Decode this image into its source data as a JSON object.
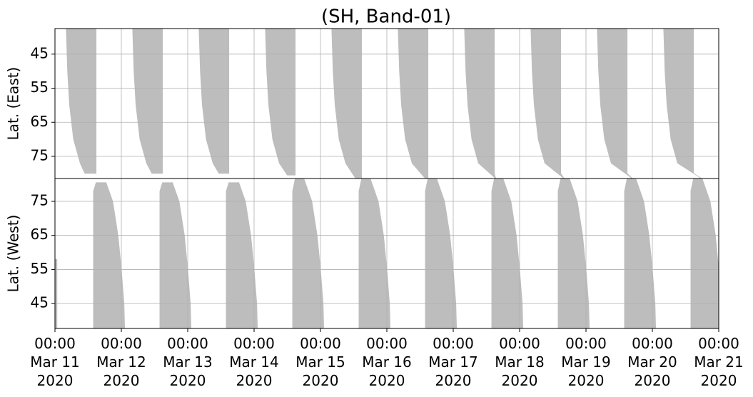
{
  "chart_data": {
    "type": "band",
    "title": "(SH, Band-01)",
    "color": "#bdbdbd",
    "grid": true,
    "xlim": [
      0,
      10
    ],
    "xticks": [
      {
        "value": 0,
        "label": "00:00\nMar 11\n2020"
      },
      {
        "value": 1,
        "label": "00:00\nMar 12\n2020"
      },
      {
        "value": 2,
        "label": "00:00\nMar 13\n2020"
      },
      {
        "value": 3,
        "label": "00:00\nMar 14\n2020"
      },
      {
        "value": 4,
        "label": "00:00\nMar 15\n2020"
      },
      {
        "value": 5,
        "label": "00:00\nMar 16\n2020"
      },
      {
        "value": 6,
        "label": "00:00\nMar 17\n2020"
      },
      {
        "value": 7,
        "label": "00:00\nMar 18\n2020"
      },
      {
        "value": 8,
        "label": "00:00\nMar 19\n2020"
      },
      {
        "value": 9,
        "label": "00:00\nMar 20\n2020"
      },
      {
        "value": 10,
        "label": "00:00\nMar 21\n2020"
      }
    ],
    "panels": [
      {
        "ylabel": "Lat. (East)",
        "ylim": [
          81.5,
          37.5
        ],
        "yticks": [
          45,
          55,
          65,
          75
        ],
        "bands": [
          {
            "x": [
              0.17,
              0.19,
              0.22,
              0.28,
              0.38,
              0.45,
              0.62,
              0.62
            ],
            "y": [
              37.5,
              50,
              60,
              70,
              77,
              80,
              80,
              37.5
            ]
          },
          {
            "x": [
              1.17,
              1.19,
              1.22,
              1.28,
              1.38,
              1.46,
              1.62,
              1.62
            ],
            "y": [
              37.5,
              50,
              60,
              70,
              77,
              80,
              80,
              37.5
            ]
          },
          {
            "x": [
              2.17,
              2.19,
              2.22,
              2.28,
              2.38,
              2.47,
              2.62,
              2.62
            ],
            "y": [
              37.5,
              50,
              60,
              70,
              77,
              80,
              80,
              37.5
            ]
          },
          {
            "x": [
              3.17,
              3.19,
              3.22,
              3.28,
              3.38,
              3.5,
              3.62,
              3.62
            ],
            "y": [
              37.5,
              50,
              60,
              70,
              77,
              80.5,
              80.5,
              37.5
            ]
          },
          {
            "x": [
              4.17,
              4.19,
              4.22,
              4.28,
              4.38,
              4.53,
              4.62,
              4.62
            ],
            "y": [
              37.5,
              50,
              60,
              70,
              77,
              81.5,
              81.5,
              37.5
            ]
          },
          {
            "x": [
              5.17,
              5.19,
              5.22,
              5.28,
              5.38,
              5.58,
              5.62,
              5.62
            ],
            "y": [
              37.5,
              50,
              60,
              70,
              77,
              81.5,
              81.5,
              37.5
            ]
          },
          {
            "x": [
              6.17,
              6.19,
              6.22,
              6.28,
              6.38,
              6.64,
              6.62,
              6.62
            ],
            "y": [
              37.5,
              50,
              60,
              70,
              77,
              81.5,
              80,
              37.5
            ]
          },
          {
            "x": [
              7.17,
              7.19,
              7.22,
              7.28,
              7.38,
              7.67,
              7.62,
              7.62
            ],
            "y": [
              37.5,
              50,
              60,
              70,
              77,
              81.5,
              80,
              37.5
            ]
          },
          {
            "x": [
              8.17,
              8.19,
              8.22,
              8.28,
              8.38,
              8.7,
              8.62,
              8.62
            ],
            "y": [
              37.5,
              50,
              60,
              70,
              77,
              81.5,
              80,
              37.5
            ]
          },
          {
            "x": [
              9.17,
              9.19,
              9.22,
              9.28,
              9.38,
              9.74,
              9.62,
              9.62
            ],
            "y": [
              37.5,
              50,
              60,
              70,
              77,
              81.5,
              80,
              37.5
            ]
          }
        ]
      },
      {
        "ylabel": "Lat. (West)",
        "ylim": [
          37.7,
          81.7
        ],
        "yticks": [
          75,
          65,
          55,
          45
        ],
        "bands": [
          {
            "x": [
              0,
              0,
              0.03,
              0.03
            ],
            "y": [
              37.7,
              58,
              58,
              37.7
            ]
          },
          {
            "x": [
              0.58,
              0.58,
              0.62,
              0.77,
              0.87,
              0.95,
              1.0,
              1.04,
              1.05
            ],
            "y": [
              37.7,
              78,
              80.5,
              80.5,
              75,
              65,
              55,
              45,
              37.7
            ]
          },
          {
            "x": [
              1.58,
              1.58,
              1.62,
              1.77,
              1.87,
              1.95,
              2.0,
              2.04,
              2.05
            ],
            "y": [
              37.7,
              78,
              80.5,
              80.5,
              75,
              65,
              55,
              45,
              37.7
            ]
          },
          {
            "x": [
              2.58,
              2.58,
              2.62,
              2.77,
              2.87,
              2.95,
              3.0,
              3.04,
              3.05
            ],
            "y": [
              37.7,
              78,
              80.5,
              80.5,
              75,
              65,
              55,
              45,
              37.7
            ]
          },
          {
            "x": [
              3.58,
              3.58,
              3.62,
              3.75,
              3.87,
              3.95,
              4.0,
              4.04,
              4.05
            ],
            "y": [
              37.7,
              78,
              81.7,
              81.7,
              75,
              65,
              55,
              45,
              37.7
            ]
          },
          {
            "x": [
              4.58,
              4.58,
              4.62,
              4.75,
              4.87,
              4.95,
              5.0,
              5.04,
              5.05
            ],
            "y": [
              37.7,
              78,
              81.7,
              81.7,
              75,
              65,
              55,
              45,
              37.7
            ]
          },
          {
            "x": [
              5.58,
              5.58,
              5.62,
              5.75,
              5.87,
              5.95,
              6.0,
              6.04,
              6.05
            ],
            "y": [
              37.7,
              78,
              81.7,
              81.7,
              75,
              65,
              55,
              45,
              37.7
            ]
          },
          {
            "x": [
              6.58,
              6.58,
              6.62,
              6.75,
              6.87,
              6.95,
              7.0,
              7.04,
              7.05
            ],
            "y": [
              37.7,
              78,
              81.7,
              81.7,
              75,
              65,
              55,
              45,
              37.7
            ]
          },
          {
            "x": [
              7.58,
              7.58,
              7.62,
              7.75,
              7.87,
              7.95,
              8.0,
              8.04,
              8.05
            ],
            "y": [
              37.7,
              78,
              81.7,
              81.7,
              75,
              65,
              55,
              45,
              37.7
            ]
          },
          {
            "x": [
              8.58,
              8.58,
              8.62,
              8.75,
              8.87,
              8.95,
              9.0,
              9.04,
              9.05
            ],
            "y": [
              37.7,
              78,
              81.7,
              81.7,
              75,
              65,
              55,
              45,
              37.7
            ]
          },
          {
            "x": [
              9.58,
              9.58,
              9.62,
              9.75,
              9.87,
              9.95,
              10.0,
              10.04,
              10.05
            ],
            "y": [
              37.7,
              78,
              81.7,
              81.7,
              75,
              65,
              55,
              45,
              37.7
            ]
          }
        ]
      }
    ]
  }
}
